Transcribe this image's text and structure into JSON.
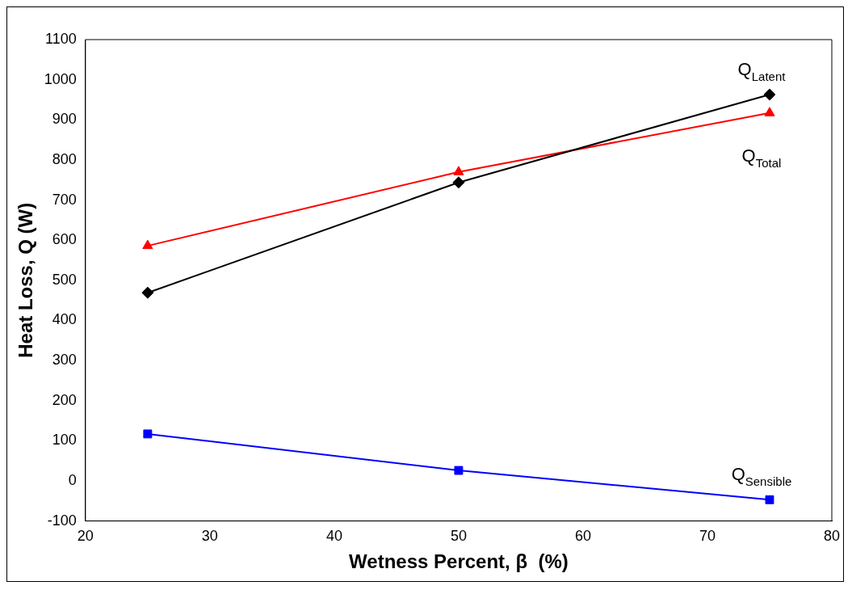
{
  "chart_data": {
    "type": "line",
    "xlabel": "Wetness Percent, β  (%)",
    "ylabel": "Heat Loss, Q (W)",
    "x": [
      25,
      50,
      75
    ],
    "series": [
      {
        "name": "Q$_{Latent}$",
        "color": "#000000",
        "marker": "diamond",
        "values": [
          469,
          744,
          963
        ]
      },
      {
        "name": "Q$_{Total}$",
        "color": "#ff0000",
        "marker": "triangle",
        "values": [
          586,
          770,
          917
        ]
      },
      {
        "name": "Q$_{Sensible}$",
        "color": "#0000ff",
        "marker": "square",
        "values": [
          117,
          26,
          -47
        ]
      }
    ],
    "xlim": [
      20,
      80
    ],
    "xticks": [
      20,
      30,
      40,
      50,
      60,
      70,
      80
    ],
    "ylim": [
      -100,
      1100
    ],
    "yticks": [
      -100,
      0,
      100,
      200,
      300,
      400,
      500,
      600,
      700,
      800,
      900,
      1000,
      1100
    ],
    "grid": false,
    "legend": false
  }
}
